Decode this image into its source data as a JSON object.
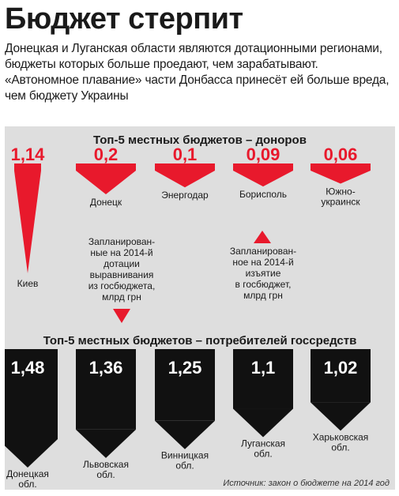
{
  "headline": "Бюджет стерпит",
  "lead": "Донецкая и Луганская области являются дотационными регионами, бюджеты которых больше проедают, чем зарабатывают. «Автономное плавание» части Донбасса принесёт ей больше вреда, чем бюджету Украины",
  "source": "Источник: закон о бюджете на 2014 год",
  "colors": {
    "donor": "#e8192c",
    "consumer": "#111111",
    "panel": "#dedede"
  },
  "chart_data": [
    {
      "type": "bar",
      "title": "Топ-5 местных бюджетов – доноров",
      "categories": [
        "Киев",
        "Донецк",
        "Энергодар",
        "Борисполь",
        "Южно-украинск"
      ],
      "values": [
        1.14,
        0.2,
        0.1,
        0.09,
        0.06
      ],
      "value_labels": [
        "1,14",
        "0,2",
        "0,1",
        "0,09",
        "0,06"
      ],
      "annotation": "Запланирован-ное на 2014-й изъятие в госбюджет, млрд грн"
    },
    {
      "type": "bar",
      "title": "Топ-5 местных бюджетов – потребителей госсредств",
      "categories": [
        "Донецкая обл.",
        "Львовская обл.",
        "Винницкая обл.",
        "Луганская обл.",
        "Харьковская обл."
      ],
      "values": [
        1.48,
        1.36,
        1.25,
        1.1,
        1.02
      ],
      "value_labels": [
        "1,48",
        "1,36",
        "1,25",
        "1,1",
        "1,02"
      ],
      "annotation": "Запланирован-ные на 2014-й дотации выравнивания из госбюджета, млрд грн"
    }
  ]
}
